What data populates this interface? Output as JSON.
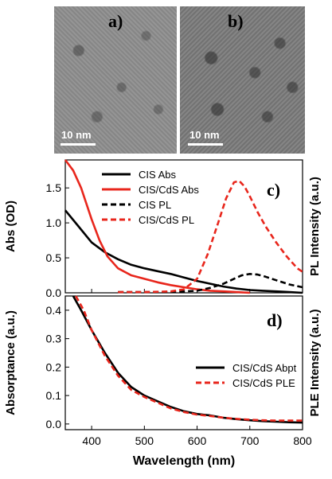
{
  "tem_images": [
    {
      "label": "a)",
      "scale_text": "10 nm",
      "background": "#8f8f8f"
    },
    {
      "label": "b)",
      "scale_text": "10 nm",
      "background": "#7d7d7d"
    }
  ],
  "chart_data": [
    {
      "type": "line",
      "panel_label": "c)",
      "xlim": [
        350,
        800
      ],
      "xticks": [],
      "ylabel": "Abs (OD)",
      "ylabel_right": "PL Intensity (a.u.)",
      "ylim": [
        0,
        1.9
      ],
      "yticks": [
        0.0,
        0.5,
        1.0,
        1.5
      ],
      "ytick_labels": [
        "0.0",
        "0.5",
        "1.0",
        "1.5"
      ],
      "legend_position": "top-center",
      "series": [
        {
          "name": "CIS Abs",
          "color": "#000000",
          "style": "solid",
          "points": [
            [
              350,
              1.18
            ],
            [
              375,
              0.95
            ],
            [
              400,
              0.72
            ],
            [
              425,
              0.58
            ],
            [
              450,
              0.48
            ],
            [
              475,
              0.4
            ],
            [
              500,
              0.35
            ],
            [
              525,
              0.31
            ],
            [
              550,
              0.27
            ],
            [
              575,
              0.22
            ],
            [
              600,
              0.17
            ],
            [
              625,
              0.13
            ],
            [
              650,
              0.09
            ],
            [
              675,
              0.06
            ],
            [
              700,
              0.04
            ],
            [
              725,
              0.03
            ],
            [
              750,
              0.02
            ],
            [
              775,
              0.01
            ],
            [
              800,
              0.0
            ]
          ]
        },
        {
          "name": "CIS/CdS Abs",
          "color": "#e8261c",
          "style": "solid",
          "points": [
            [
              350,
              1.92
            ],
            [
              365,
              1.75
            ],
            [
              380,
              1.5
            ],
            [
              400,
              1.05
            ],
            [
              415,
              0.75
            ],
            [
              430,
              0.52
            ],
            [
              450,
              0.35
            ],
            [
              475,
              0.25
            ],
            [
              500,
              0.2
            ],
            [
              525,
              0.15
            ],
            [
              550,
              0.11
            ],
            [
              575,
              0.08
            ],
            [
              600,
              0.05
            ],
            [
              625,
              0.03
            ],
            [
              650,
              0.02
            ],
            [
              675,
              0.01
            ],
            [
              700,
              0.0
            ]
          ]
        },
        {
          "name": "CIS PL",
          "color": "#000000",
          "style": "dashed",
          "points": [
            [
              450,
              0.01
            ],
            [
              500,
              0.01
            ],
            [
              550,
              0.01
            ],
            [
              600,
              0.03
            ],
            [
              625,
              0.07
            ],
            [
              650,
              0.13
            ],
            [
              670,
              0.2
            ],
            [
              685,
              0.25
            ],
            [
              700,
              0.27
            ],
            [
              715,
              0.26
            ],
            [
              730,
              0.23
            ],
            [
              750,
              0.18
            ],
            [
              775,
              0.12
            ],
            [
              800,
              0.08
            ]
          ]
        },
        {
          "name": "CIS/CdS PL",
          "color": "#e8261c",
          "style": "dashed",
          "points": [
            [
              450,
              0.01
            ],
            [
              500,
              0.01
            ],
            [
              550,
              0.02
            ],
            [
              575,
              0.05
            ],
            [
              600,
              0.2
            ],
            [
              620,
              0.55
            ],
            [
              640,
              1.0
            ],
            [
              655,
              1.35
            ],
            [
              670,
              1.58
            ],
            [
              680,
              1.6
            ],
            [
              690,
              1.52
            ],
            [
              700,
              1.38
            ],
            [
              715,
              1.15
            ],
            [
              730,
              0.95
            ],
            [
              750,
              0.72
            ],
            [
              770,
              0.52
            ],
            [
              790,
              0.35
            ],
            [
              800,
              0.3
            ]
          ]
        }
      ]
    },
    {
      "type": "line",
      "panel_label": "d)",
      "xlabel": "Wavelength (nm)",
      "xlim": [
        350,
        800
      ],
      "xticks": [
        400,
        500,
        600,
        700,
        800
      ],
      "xtick_labels": [
        "400",
        "500",
        "600",
        "700",
        "800"
      ],
      "ylabel": "Absorptance (a.u.)",
      "ylabel_right": "PLE Intensity (a.u.)",
      "ylim": [
        -0.02,
        0.45
      ],
      "yticks": [
        0.0,
        0.1,
        0.2,
        0.3,
        0.4
      ],
      "ytick_labels": [
        "0.0",
        "0.1",
        "0.2",
        "0.3",
        "0.4"
      ],
      "legend_position": "center-right",
      "series": [
        {
          "name": "CIS/CdS Abpt",
          "color": "#000000",
          "style": "solid",
          "points": [
            [
              365,
              0.45
            ],
            [
              380,
              0.4
            ],
            [
              400,
              0.33
            ],
            [
              425,
              0.25
            ],
            [
              450,
              0.18
            ],
            [
              475,
              0.13
            ],
            [
              500,
              0.1
            ],
            [
              525,
              0.08
            ],
            [
              550,
              0.06
            ],
            [
              575,
              0.045
            ],
            [
              600,
              0.035
            ],
            [
              625,
              0.03
            ],
            [
              650,
              0.022
            ],
            [
              675,
              0.017
            ],
            [
              700,
              0.013
            ],
            [
              725,
              0.01
            ],
            [
              750,
              0.008
            ],
            [
              775,
              0.006
            ],
            [
              800,
              0.005
            ]
          ]
        },
        {
          "name": "CIS/CdS PLE",
          "color": "#e8261c",
          "style": "dashed",
          "points": [
            [
              370,
              0.45
            ],
            [
              385,
              0.4
            ],
            [
              400,
              0.33
            ],
            [
              425,
              0.24
            ],
            [
              450,
              0.17
            ],
            [
              475,
              0.12
            ],
            [
              500,
              0.095
            ],
            [
              525,
              0.075
            ],
            [
              550,
              0.055
            ],
            [
              575,
              0.042
            ],
            [
              600,
              0.033
            ],
            [
              625,
              0.028
            ],
            [
              650,
              0.022
            ],
            [
              675,
              0.018
            ],
            [
              700,
              0.015
            ],
            [
              725,
              0.013
            ],
            [
              750,
              0.012
            ],
            [
              775,
              0.012
            ],
            [
              800,
              0.012
            ]
          ]
        }
      ]
    }
  ]
}
